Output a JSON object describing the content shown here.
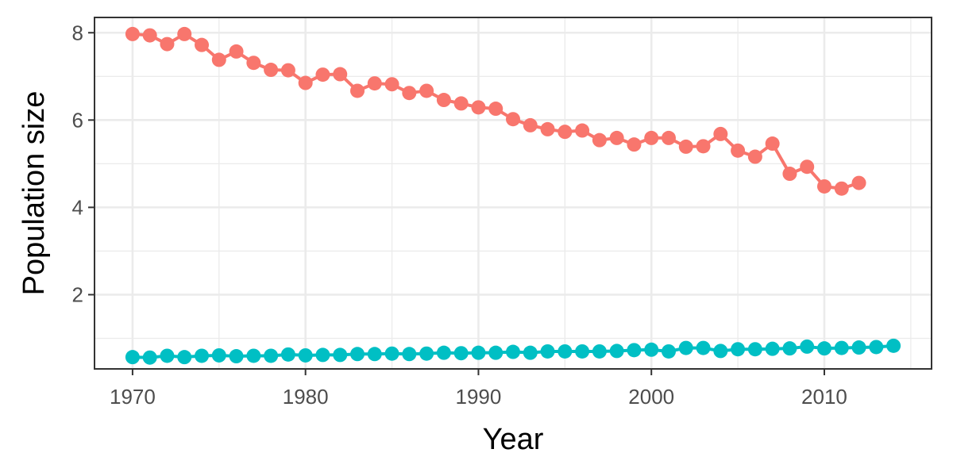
{
  "chart_data": {
    "type": "line",
    "xlabel": "Year",
    "ylabel": "Population size",
    "xlim": [
      1967.8,
      2016.2
    ],
    "ylim": [
      0.3,
      8.35
    ],
    "x_ticks": [
      1970,
      1980,
      1990,
      2000,
      2010
    ],
    "y_ticks": [
      2,
      4,
      6,
      8
    ],
    "grid": true,
    "legend": "none",
    "series": [
      {
        "color": "#F8766D",
        "x": [
          1970,
          1971,
          1972,
          1973,
          1974,
          1975,
          1976,
          1977,
          1978,
          1979,
          1980,
          1981,
          1982,
          1983,
          1984,
          1985,
          1986,
          1987,
          1988,
          1989,
          1990,
          1991,
          1992,
          1993,
          1994,
          1995,
          1996,
          1997,
          1998,
          1999,
          2000,
          2001,
          2002,
          2003,
          2004,
          2005,
          2006,
          2007,
          2008,
          2009,
          2010,
          2011,
          2012
        ],
        "y": [
          7.97,
          7.94,
          7.74,
          7.97,
          7.72,
          7.38,
          7.57,
          7.31,
          7.15,
          7.14,
          6.85,
          7.04,
          7.05,
          6.67,
          6.84,
          6.82,
          6.62,
          6.67,
          6.46,
          6.38,
          6.29,
          6.26,
          6.02,
          5.88,
          5.79,
          5.73,
          5.76,
          5.54,
          5.59,
          5.44,
          5.59,
          5.59,
          5.39,
          5.4,
          5.68,
          5.3,
          5.16,
          5.46,
          4.77,
          4.93,
          4.48,
          4.43,
          4.56
        ]
      },
      {
        "color": "#00BFC4",
        "x": [
          1970,
          1971,
          1972,
          1973,
          1974,
          1975,
          1976,
          1977,
          1978,
          1979,
          1980,
          1981,
          1982,
          1983,
          1984,
          1985,
          1986,
          1987,
          1988,
          1989,
          1990,
          1991,
          1992,
          1993,
          1994,
          1995,
          1996,
          1997,
          1998,
          1999,
          2000,
          2001,
          2002,
          2003,
          2004,
          2005,
          2006,
          2007,
          2008,
          2009,
          2010,
          2011,
          2012,
          2013,
          2014
        ],
        "y": [
          0.57,
          0.56,
          0.6,
          0.57,
          0.6,
          0.61,
          0.59,
          0.6,
          0.6,
          0.63,
          0.61,
          0.62,
          0.62,
          0.64,
          0.64,
          0.65,
          0.64,
          0.65,
          0.67,
          0.66,
          0.67,
          0.67,
          0.69,
          0.67,
          0.7,
          0.7,
          0.7,
          0.7,
          0.71,
          0.73,
          0.74,
          0.7,
          0.78,
          0.78,
          0.71,
          0.75,
          0.75,
          0.76,
          0.77,
          0.81,
          0.77,
          0.78,
          0.79,
          0.8,
          0.83
        ]
      }
    ]
  }
}
